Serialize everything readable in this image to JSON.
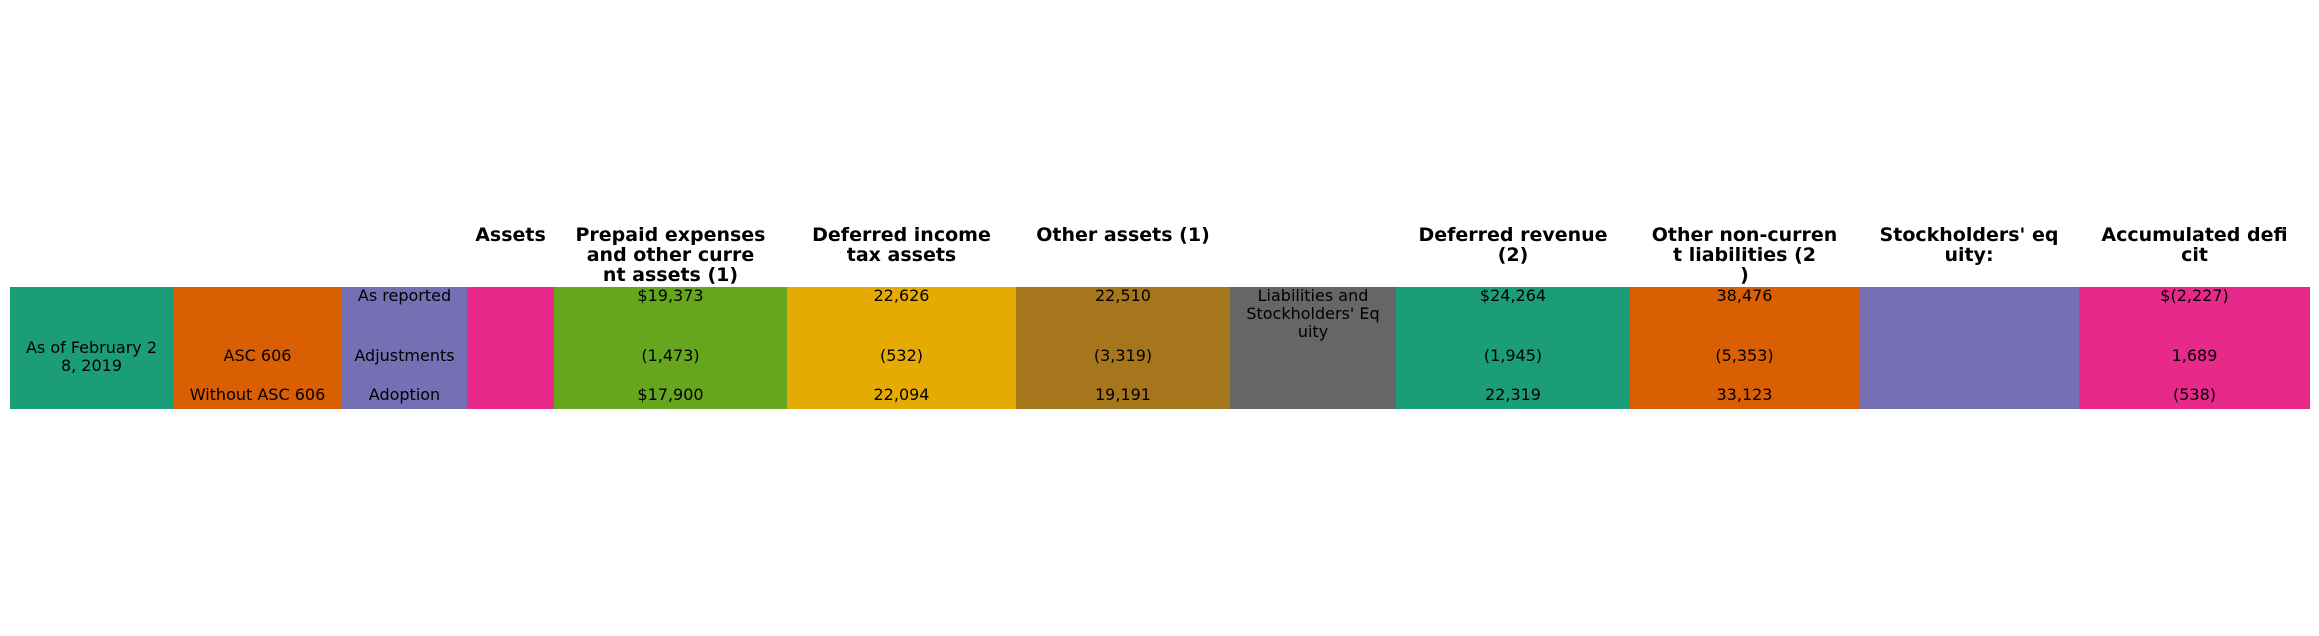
{
  "chart_data": {
    "type": "table",
    "columns": [
      {
        "header": "",
        "color": "#1b9e77",
        "cells": [
          "",
          "As of February 2\n8, 2019",
          ""
        ]
      },
      {
        "header": "",
        "color": "#d95f02",
        "cells": [
          "",
          "ASC 606",
          "Without ASC 606"
        ]
      },
      {
        "header": "",
        "color": "#7570b3",
        "cells": [
          "As reported",
          "Adjustments",
          "Adoption"
        ]
      },
      {
        "header": "Assets",
        "color": "#e7298a",
        "cells": [
          "",
          "",
          ""
        ]
      },
      {
        "header": "Prepaid expenses\nand other curre\nnt assets (1)",
        "color": "#66a61e",
        "cells": [
          "$19,373",
          "(1,473)",
          "$17,900"
        ]
      },
      {
        "header": "Deferred income\ntax assets",
        "color": "#e6ab02",
        "cells": [
          "22,626",
          "(532)",
          "22,094"
        ]
      },
      {
        "header": "Other assets (1)",
        "color": "#a6761d",
        "cells": [
          "22,510",
          "(3,319)",
          "19,191"
        ]
      },
      {
        "header": "",
        "color": "#666666",
        "cells": [
          "Liabilities and\nStockholders' Eq\nuity",
          "",
          ""
        ]
      },
      {
        "header": "Deferred revenue\n(2)",
        "color": "#1b9e77",
        "cells": [
          "$24,264",
          "(1,945)",
          "22,319"
        ]
      },
      {
        "header": "Other non-curren\nt liabilities (2\n)",
        "color": "#d95f02",
        "cells": [
          "38,476",
          "(5,353)",
          "33,123"
        ]
      },
      {
        "header": "Stockholders' eq\nuity:",
        "color": "#7570b3",
        "cells": [
          "",
          "",
          ""
        ]
      },
      {
        "header": "Accumulated defi\ncit",
        "color": "#e7298a",
        "cells": [
          "$(2,227)",
          "1,689",
          "(538)"
        ]
      }
    ]
  }
}
